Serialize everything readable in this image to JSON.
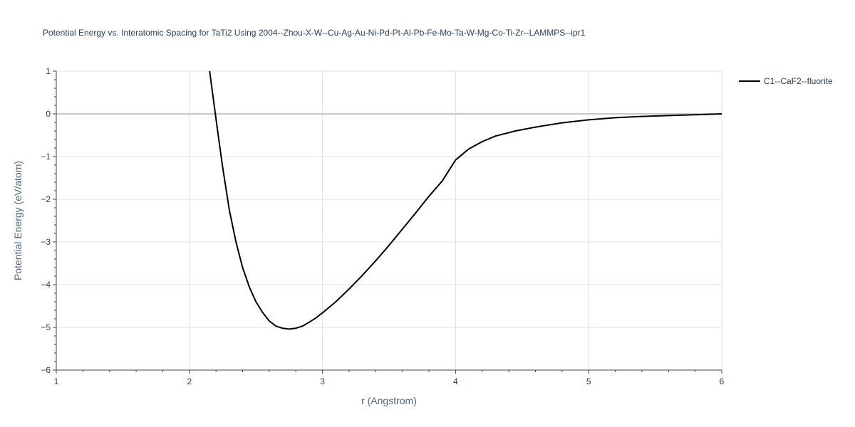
{
  "chart_data": {
    "type": "line",
    "title": "Potential Energy vs. Interatomic Spacing for TaTi2 Using 2004--Zhou-X-W--Cu-Ag-Au-Ni-Pd-Pt-Al-Pb-Fe-Mo-Ta-W-Mg-Co-Ti-Zr--LAMMPS--ipr1",
    "xlabel": "r (Angstrom)",
    "ylabel": "Potential Energy (eV/atom)",
    "xlim": [
      1,
      6
    ],
    "ylim": [
      -6,
      1
    ],
    "x_ticks": [
      1,
      2,
      3,
      4,
      5,
      6
    ],
    "y_ticks": [
      1,
      0,
      -1,
      -2,
      -3,
      -4,
      -5,
      -6
    ],
    "x_tick_labels": [
      "1",
      "2",
      "3",
      "4",
      "5",
      "6"
    ],
    "y_tick_labels": [
      "1",
      "0",
      "−1",
      "−2",
      "−3",
      "−4",
      "−5",
      "−6"
    ],
    "grid": true,
    "legend_position": "top-right",
    "series": [
      {
        "name": "C1--CaF2--fluorite",
        "color": "#000000",
        "x": [
          2.15,
          2.18,
          2.21,
          2.25,
          2.3,
          2.35,
          2.4,
          2.45,
          2.5,
          2.55,
          2.6,
          2.65,
          2.7,
          2.75,
          2.8,
          2.85,
          2.9,
          2.95,
          3.0,
          3.1,
          3.2,
          3.3,
          3.4,
          3.5,
          3.6,
          3.7,
          3.8,
          3.9,
          4.0,
          4.1,
          4.2,
          4.3,
          4.45,
          4.6,
          4.8,
          5.0,
          5.2,
          5.4,
          5.6,
          5.8,
          6.0
        ],
        "y": [
          1.05,
          0.35,
          -0.35,
          -1.25,
          -2.25,
          -3.0,
          -3.6,
          -4.05,
          -4.4,
          -4.65,
          -4.85,
          -4.97,
          -5.02,
          -5.04,
          -5.02,
          -4.97,
          -4.88,
          -4.78,
          -4.66,
          -4.4,
          -4.1,
          -3.78,
          -3.44,
          -3.08,
          -2.7,
          -2.32,
          -1.93,
          -1.57,
          -1.08,
          -0.82,
          -0.65,
          -0.52,
          -0.4,
          -0.31,
          -0.21,
          -0.14,
          -0.09,
          -0.06,
          -0.04,
          -0.02,
          0.0
        ]
      }
    ]
  }
}
